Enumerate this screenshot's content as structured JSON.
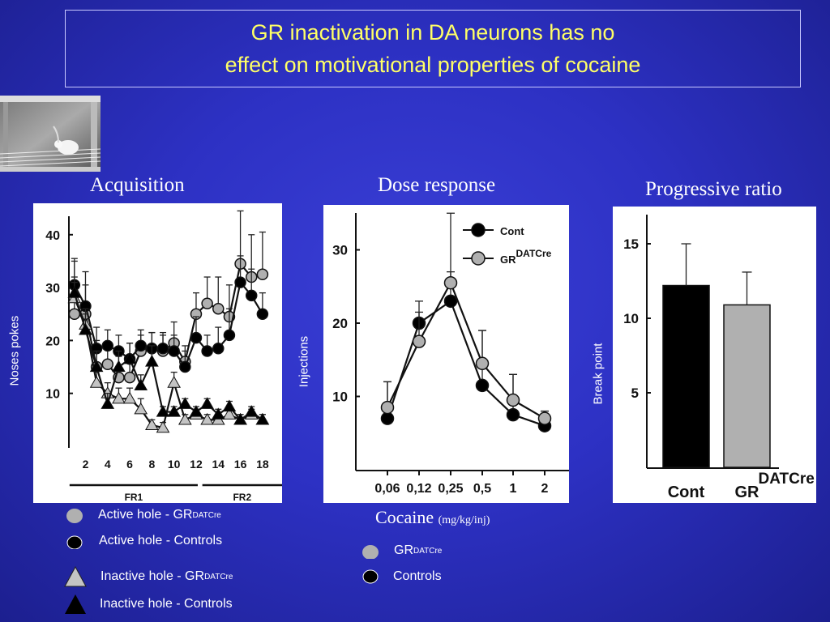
{
  "title": {
    "line1": "GR inactivation in DA neurons has no",
    "line2": "effect on motivational properties of cocaine"
  },
  "photo": {
    "icon": "mouse-in-operant-chamber"
  },
  "colors": {
    "background": "#2d31c4",
    "title": "#ffff66",
    "control": "#000000",
    "mutant": "#b0b0b0",
    "mutant_triangle": "#c4c4c4"
  },
  "chart_data": [
    {
      "type": "line",
      "title": "Acquisition",
      "ylabel": "Noses pokes",
      "xlabel": "",
      "ylim": [
        0,
        45
      ],
      "yticks": [
        10,
        20,
        30,
        40
      ],
      "xticks": [
        2,
        4,
        6,
        8,
        10,
        12,
        14,
        16,
        18
      ],
      "phases": [
        {
          "label": "FR1",
          "from": 1,
          "to": 12
        },
        {
          "label": "FR2",
          "from": 13,
          "to": 18
        }
      ],
      "x": [
        1,
        2,
        3,
        4,
        5,
        6,
        7,
        8,
        9,
        10,
        11,
        12,
        13,
        14,
        15,
        16,
        17,
        18
      ],
      "series": [
        {
          "name": "Active hole - GR",
          "sup": "DATCre",
          "marker": "circle",
          "color": "#b0b0b0",
          "values": [
            25,
            25,
            15,
            15.5,
            13,
            13,
            18,
            18.5,
            18,
            19.5,
            16,
            25,
            27,
            26,
            24.5,
            34.5,
            32,
            32.5
          ],
          "err": [
            10,
            8,
            5,
            4,
            4,
            3,
            3,
            3,
            3,
            4,
            3,
            4,
            5,
            6,
            6,
            10,
            8,
            8
          ]
        },
        {
          "name": "Active hole - Controls",
          "marker": "circle",
          "color": "#000000",
          "values": [
            30.5,
            26.5,
            18.5,
            19,
            18,
            16.5,
            19,
            18.5,
            18.5,
            18,
            15,
            20.5,
            18,
            18.5,
            21,
            31,
            28.5,
            25
          ],
          "err": [
            5,
            4,
            4,
            3,
            3,
            3,
            3,
            3,
            3,
            3,
            3,
            4,
            3,
            4,
            5,
            5,
            5,
            4
          ]
        },
        {
          "name": "Inactive hole - GR",
          "sup": "DATCre",
          "marker": "triangle",
          "color": "#c4c4c4",
          "values": [
            28,
            23,
            12,
            10,
            9,
            9,
            7,
            4,
            3.5,
            12,
            5,
            6,
            5,
            5,
            6,
            5,
            6,
            5
          ],
          "err": [
            3,
            3,
            3,
            2,
            2,
            2,
            2,
            1,
            1,
            2,
            1,
            1,
            1,
            1,
            1,
            1,
            1,
            1
          ]
        },
        {
          "name": "Inactive hole - Controls",
          "marker": "triangle",
          "color": "#000000",
          "values": [
            29,
            22,
            15,
            8,
            15,
            16.5,
            11.5,
            16,
            6.5,
            6.5,
            8,
            6.5,
            8,
            6,
            7.5,
            5,
            6.5,
            5
          ],
          "err": [
            3,
            3,
            3,
            2,
            3,
            3,
            2,
            3,
            1,
            1,
            1,
            1,
            1,
            1,
            1,
            1,
            1,
            1
          ]
        }
      ]
    },
    {
      "type": "line",
      "title": "Dose response",
      "ylabel": "Injections",
      "xlabel": "Cocaine",
      "xlabel_unit": "(mg/kg/inj)",
      "categories": [
        "0,06",
        "0,12",
        "0,25",
        "0,5",
        "1",
        "2"
      ],
      "ylim": [
        0,
        35
      ],
      "yticks": [
        10,
        20,
        30
      ],
      "series": [
        {
          "name": "Cont",
          "color": "#000000",
          "values": [
            7,
            20,
            23,
            11.5,
            7.5,
            6
          ],
          "err": [
            5,
            3,
            12,
            7.5,
            5.5,
            2
          ]
        },
        {
          "name": "GR",
          "sup": "DATCre",
          "color": "#b0b0b0",
          "values": [
            8.5,
            17.5,
            25.5,
            14.5,
            9.5,
            7
          ],
          "err": [
            3.5,
            4,
            1.5,
            4.5,
            3.5,
            1
          ]
        }
      ],
      "legend": [
        {
          "label": "GR",
          "sup": "DATCre",
          "color": "#b0b0b0"
        },
        {
          "label": "Controls",
          "color": "#000000"
        }
      ]
    },
    {
      "type": "bar",
      "title": "Progressive ratio",
      "ylabel": "Break point",
      "categories": [
        "Cont",
        "GR"
      ],
      "category_sup": [
        "",
        "DATCre"
      ],
      "ylim": [
        0,
        17.5
      ],
      "yticks": [
        5,
        10,
        15
      ],
      "values": [
        12.2,
        10.9
      ],
      "err": [
        2.8,
        2.2
      ],
      "colors": [
        "#000000",
        "#b0b0b0"
      ]
    }
  ],
  "legend_acquisition": [
    {
      "label": "Active hole - GR",
      "sup": "DATCre",
      "marker": "circle",
      "color": "#b0b0b0"
    },
    {
      "label": "Active hole - Controls",
      "marker": "circle",
      "color": "#000000"
    },
    {
      "label": "Inactive hole - GR",
      "sup": "DATCre",
      "marker": "triangle",
      "color": "#c4c4c4"
    },
    {
      "label": "Inactive hole - Controls",
      "marker": "triangle",
      "color": "#000000"
    }
  ]
}
